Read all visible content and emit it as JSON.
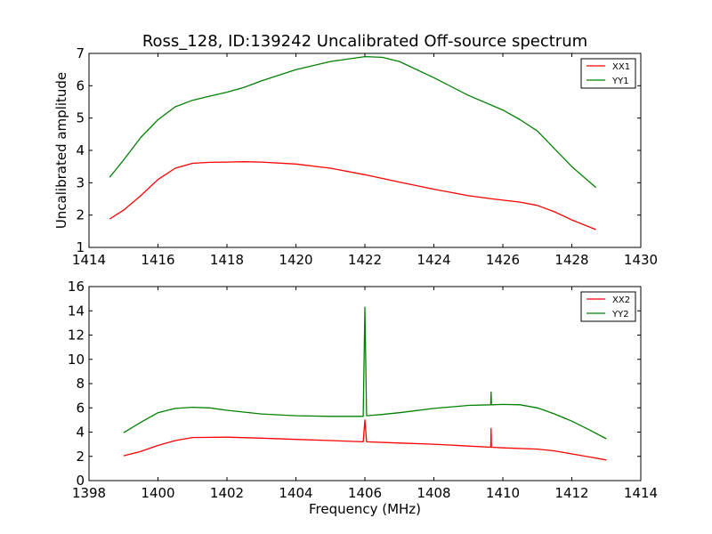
{
  "chart_data": [
    {
      "type": "line",
      "title": "Ross_128, ID:139242 Uncalibrated Off-source spectrum",
      "xlabel": "",
      "ylabel": "Uncalibrated amplitude",
      "xlim": [
        1414,
        1430
      ],
      "ylim": [
        1,
        7
      ],
      "xticks": [
        "1414",
        "1416",
        "1418",
        "1420",
        "1422",
        "1424",
        "1426",
        "1428",
        "1430"
      ],
      "yticks": [
        "1",
        "2",
        "3",
        "4",
        "5",
        "6",
        "7"
      ],
      "legend_position": "top-right",
      "series": [
        {
          "name": "XX1",
          "color": "#ff0000",
          "x": [
            1414.6,
            1415.0,
            1415.5,
            1416.0,
            1416.5,
            1417.0,
            1417.5,
            1418.0,
            1418.5,
            1419.0,
            1420.0,
            1421.0,
            1422.0,
            1423.0,
            1424.0,
            1425.0,
            1425.7,
            1426.5,
            1427.0,
            1427.5,
            1428.0,
            1428.7
          ],
          "values": [
            1.88,
            2.15,
            2.6,
            3.1,
            3.45,
            3.6,
            3.63,
            3.64,
            3.65,
            3.64,
            3.58,
            3.45,
            3.25,
            3.02,
            2.8,
            2.6,
            2.5,
            2.4,
            2.3,
            2.1,
            1.85,
            1.55
          ]
        },
        {
          "name": "YY1",
          "color": "#008000",
          "x": [
            1414.6,
            1415.0,
            1415.5,
            1416.0,
            1416.5,
            1417.0,
            1417.5,
            1418.0,
            1418.5,
            1419.0,
            1420.0,
            1421.0,
            1422.0,
            1422.5,
            1423.0,
            1424.0,
            1425.0,
            1426.0,
            1426.5,
            1427.0,
            1427.5,
            1428.0,
            1428.7
          ],
          "values": [
            3.17,
            3.7,
            4.4,
            4.95,
            5.35,
            5.55,
            5.68,
            5.8,
            5.95,
            6.15,
            6.5,
            6.75,
            6.9,
            6.88,
            6.75,
            6.25,
            5.7,
            5.25,
            4.95,
            4.6,
            4.05,
            3.5,
            2.85
          ]
        }
      ]
    },
    {
      "type": "line",
      "title": "",
      "xlabel": "Frequency (MHz)",
      "ylabel": "",
      "xlim": [
        1398,
        1414
      ],
      "ylim": [
        0,
        16
      ],
      "xticks": [
        "1398",
        "1400",
        "1402",
        "1404",
        "1406",
        "1408",
        "1410",
        "1412",
        "1414"
      ],
      "yticks": [
        "0",
        "2",
        "4",
        "6",
        "8",
        "10",
        "12",
        "14",
        "16"
      ],
      "legend_position": "top-right",
      "series": [
        {
          "name": "XX2",
          "color": "#ff0000",
          "x": [
            1399.0,
            1399.5,
            1400.0,
            1400.5,
            1401.0,
            1402.0,
            1403.0,
            1404.0,
            1405.0,
            1405.95,
            1406.0,
            1406.05,
            1407.0,
            1408.0,
            1409.0,
            1409.65,
            1409.66,
            1409.67,
            1410.0,
            1411.0,
            1411.5,
            1412.0,
            1412.5,
            1413.0
          ],
          "values": [
            2.05,
            2.4,
            2.9,
            3.3,
            3.55,
            3.58,
            3.5,
            3.4,
            3.3,
            3.2,
            5.0,
            3.2,
            3.1,
            3.0,
            2.85,
            2.75,
            4.3,
            2.75,
            2.7,
            2.6,
            2.45,
            2.2,
            1.95,
            1.7
          ]
        },
        {
          "name": "YY2",
          "color": "#008000",
          "x": [
            1399.0,
            1399.5,
            1400.0,
            1400.5,
            1401.0,
            1401.5,
            1402.0,
            1403.0,
            1404.0,
            1405.0,
            1405.95,
            1406.0,
            1406.05,
            1406.5,
            1407.0,
            1408.0,
            1409.0,
            1409.65,
            1409.66,
            1409.67,
            1410.0,
            1410.5,
            1411.0,
            1411.5,
            1412.0,
            1412.5,
            1413.0
          ],
          "values": [
            3.95,
            4.8,
            5.6,
            5.95,
            6.05,
            6.0,
            5.8,
            5.5,
            5.35,
            5.3,
            5.3,
            14.3,
            5.35,
            5.45,
            5.6,
            5.95,
            6.2,
            6.25,
            7.3,
            6.25,
            6.28,
            6.25,
            6.0,
            5.5,
            4.9,
            4.2,
            3.45
          ]
        }
      ]
    }
  ]
}
